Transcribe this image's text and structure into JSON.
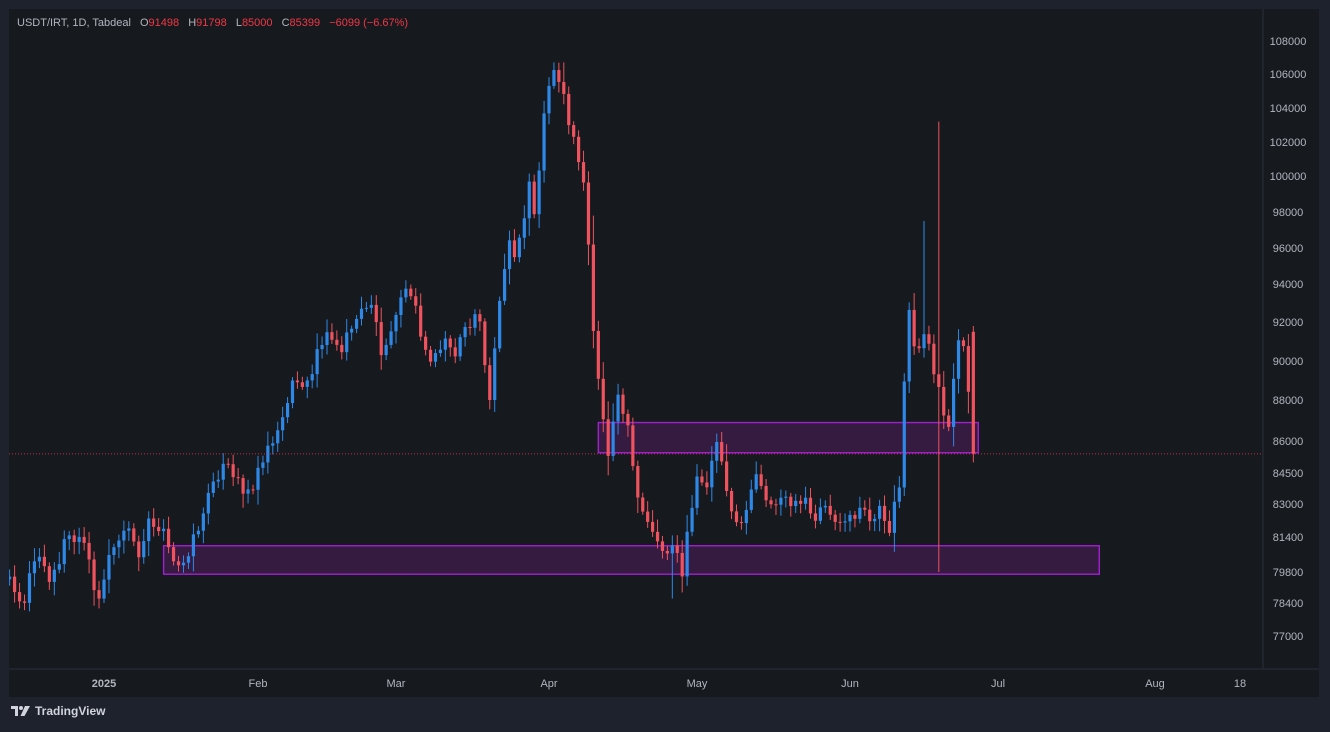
{
  "legend": {
    "symbol": "USDT/IRT, 1D, Tabdeal",
    "open_label": "O",
    "open": "91498",
    "high_label": "H",
    "high": "91798",
    "low_label": "L",
    "low": "85000",
    "close_label": "C",
    "close": "85399",
    "change": "−6099 (−6.67%)"
  },
  "footer": {
    "brand": "TradingView"
  },
  "colors": {
    "up": "#2e88e8",
    "down": "#f0525e",
    "zone_stroke": "#a020d0",
    "zone_fill": "#7a1f8a",
    "price_tag": "#f23645"
  },
  "chart_data": {
    "type": "candlestick",
    "symbol": "USDT/IRT",
    "timeframe": "1D",
    "exchange": "Tabdeal",
    "last_price": "85399",
    "y_ticks": [
      "108000",
      "106000",
      "104000",
      "102000",
      "100000",
      "98000",
      "96000",
      "94000",
      "92000",
      "90000",
      "88000",
      "86000",
      "84500",
      "83000",
      "81400",
      "79800",
      "78400",
      "77000"
    ],
    "x_ticks": [
      {
        "label": "2025",
        "date": "2025-01-01"
      },
      {
        "label": "Feb",
        "date": "2025-02-01"
      },
      {
        "label": "Mar",
        "date": "2025-03-01"
      },
      {
        "label": "Apr",
        "date": "2025-04-01"
      },
      {
        "label": "May",
        "date": "2025-05-01"
      },
      {
        "label": "Jun",
        "date": "2025-06-01"
      },
      {
        "label": "Jul",
        "date": "2025-07-01"
      },
      {
        "label": "Aug",
        "date": "2025-08-01"
      },
      {
        "label": "18",
        "date": "2025-08-18"
      }
    ],
    "zones": [
      {
        "start": "2025-04-11",
        "end": "2025-06-27",
        "top": 86900,
        "bottom": 85450
      },
      {
        "start": "2025-01-13",
        "end": "2025-07-21",
        "top": 81000,
        "bottom": 79700
      }
    ],
    "segments": [
      {
        "start": "2024-12-09",
        "end": "2024-12-31",
        "points": [
          76200,
          79500,
          78200,
          80400,
          79300,
          81800,
          80900,
          78600
        ]
      },
      {
        "start": "2024-12-31",
        "end": "2025-01-13",
        "points": [
          78600,
          80900,
          81900,
          80400,
          82300,
          81800
        ]
      },
      {
        "start": "2025-01-13",
        "end": "2025-01-27",
        "points": [
          81800,
          80400,
          79800,
          81300,
          82600,
          83800,
          84900,
          84300
        ]
      },
      {
        "start": "2025-01-27",
        "end": "2025-02-24",
        "points": [
          84300,
          83600,
          85200,
          86800,
          88900,
          89300,
          91800,
          90600,
          92100,
          92900
        ]
      },
      {
        "start": "2025-02-24",
        "end": "2025-03-20",
        "points": [
          92900,
          90300,
          92200,
          94100,
          91900,
          89600,
          91300,
          90200,
          91700,
          92300,
          88000
        ]
      },
      {
        "start": "2025-03-20",
        "end": "2025-04-01",
        "points": [
          88000,
          91900,
          94200,
          96100,
          95200,
          97600,
          99300,
          97900,
          103200,
          105300
        ]
      },
      {
        "start": "2025-04-01",
        "end": "2025-04-13",
        "points": [
          105300,
          106300,
          104500,
          102600,
          100900,
          99100,
          91700,
          87500,
          85300
        ]
      },
      {
        "start": "2025-04-13",
        "end": "2025-04-28",
        "points": [
          85300,
          87900,
          86800,
          84100,
          82400,
          81300,
          80500,
          80900,
          79600
        ]
      },
      {
        "start": "2025-04-28",
        "end": "2025-05-20",
        "points": [
          79600,
          82800,
          84700,
          83600,
          86400,
          84300,
          82600,
          82100,
          83500,
          84100,
          83200,
          82400,
          83700,
          82900
        ]
      },
      {
        "start": "2025-05-20",
        "end": "2025-06-11",
        "points": [
          82900,
          83400,
          82700,
          82600,
          83100,
          82400,
          82500,
          82000,
          83000,
          82200,
          82600,
          81900,
          83800
        ]
      },
      {
        "start": "2025-06-11",
        "end": "2025-06-26",
        "points": [
          83800,
          92600,
          90600,
          91300,
          89900,
          88100,
          86400,
          91200,
          90400,
          85400
        ]
      }
    ]
  }
}
